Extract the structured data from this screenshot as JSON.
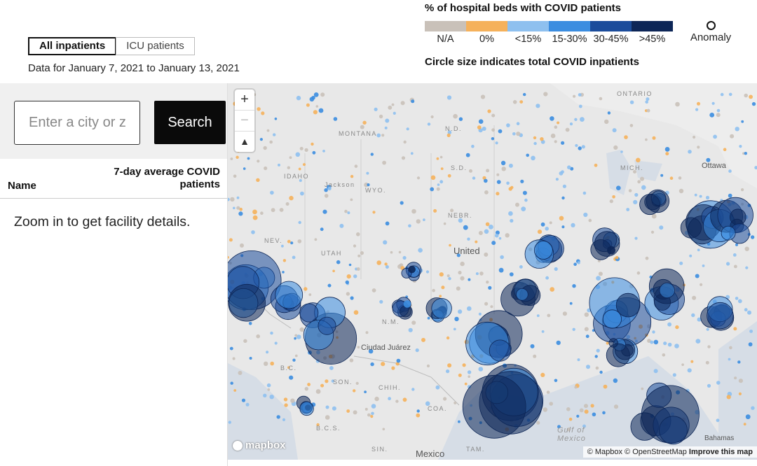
{
  "tabs": [
    {
      "label": "All inpatients",
      "active": true
    },
    {
      "label": "ICU patients",
      "active": false
    }
  ],
  "date_range": "Data for January 7, 2021 to January 13, 2021",
  "legend": {
    "title": "% of hospital beds with COVID patients",
    "categories": [
      {
        "label": "N/A",
        "color": "#c9c1b9"
      },
      {
        "label": "0%",
        "color": "#f5b15b"
      },
      {
        "label": "<15%",
        "color": "#8ec0ef"
      },
      {
        "label": "15-30%",
        "color": "#3b8de0"
      },
      {
        "label": "30-45%",
        "color": "#1b4c9b"
      },
      {
        "label": ">45%",
        "color": "#0d2657"
      }
    ],
    "anomaly_label": "Anomaly",
    "size_note": "Circle size indicates total COVID inpatients"
  },
  "search": {
    "placeholder": "Enter a city or zip",
    "button_label": "Search"
  },
  "table": {
    "col_name": "Name",
    "col_avg": "7-day average COVID patients",
    "empty_message": "Zoom in to get facility details."
  },
  "map": {
    "zoom_in": "+",
    "zoom_out": "−",
    "compass": "▲",
    "logo": "mapbox",
    "attribution_text": "© Mapbox © OpenStreetMap",
    "attribution_link": "Improve this map",
    "place_labels": [
      "ONTARIO",
      "MONTANA",
      "IDAHO",
      "Jackson",
      "WYO.",
      "N.D.",
      "S.D.",
      "NEBR.",
      "NEV.",
      "UTAH",
      "United",
      "N.M.",
      "Ciudad Juárez",
      "B.C.",
      "SON.",
      "CHIH.",
      "COA.",
      "B.C.S.",
      "SIN.",
      "TAM.",
      "Mexico",
      "Ottawa",
      "MICH.",
      "Gulf of Mexico",
      "Bahamas"
    ]
  }
}
